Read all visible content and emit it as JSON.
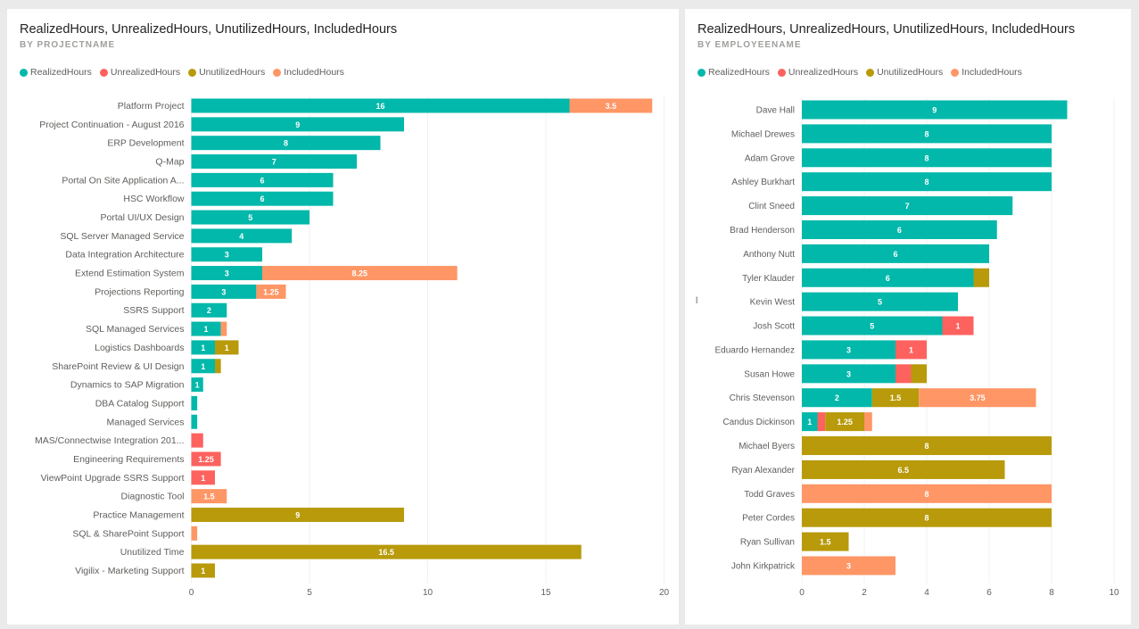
{
  "series_colors": [
    "#01b8aa",
    "#fd625e",
    "#b89a0a",
    "#fe9666"
  ],
  "chart_data": [
    {
      "type": "bar",
      "orientation": "horizontal",
      "stacked": true,
      "title": "RealizedHours, UnrealizedHours, UnutilizedHours, IncludedHours",
      "subtitle": "BY PROJECTNAME",
      "categories": [
        "Platform Project",
        "Project Continuation - August 2016",
        "ERP Development",
        "Q-Map",
        "Portal On Site Application A...",
        "HSC Workflow",
        "Portal UI/UX Design",
        "SQL Server Managed Service",
        "Data Integration Architecture",
        "Extend Estimation System",
        "Projections Reporting",
        "SSRS Support",
        "SQL Managed Services",
        "Logistics Dashboards",
        "SharePoint Review & UI Design",
        "Dynamics to SAP Migration",
        "DBA Catalog Support",
        "Managed Services",
        "MAS/Connectwise Integration 201...",
        "Engineering Requirements",
        "ViewPoint Upgrade SSRS Support",
        "Diagnostic Tool",
        "Practice Management",
        "SQL & SharePoint Support",
        "Unutilized Time",
        "Vigilix - Marketing Support"
      ],
      "series": [
        {
          "name": "RealizedHours",
          "values": [
            16,
            9,
            8,
            7,
            6,
            6,
            5,
            4.25,
            3,
            3,
            2.75,
            1.5,
            1.25,
            1,
            1,
            0.5,
            0.25,
            0.25,
            0,
            0,
            0,
            0,
            0,
            0,
            0,
            0
          ]
        },
        {
          "name": "UnrealizedHours",
          "values": [
            0,
            0,
            0,
            0,
            0,
            0,
            0,
            0,
            0,
            0,
            0,
            0,
            0,
            0,
            0,
            0,
            0,
            0,
            0.5,
            1.25,
            1,
            0,
            0,
            0,
            0,
            0
          ]
        },
        {
          "name": "UnutilizedHours",
          "values": [
            0,
            0,
            0,
            0,
            0,
            0,
            0,
            0,
            0,
            0,
            0,
            0,
            0,
            1,
            0.25,
            0,
            0,
            0,
            0,
            0,
            0,
            0,
            9,
            0,
            16.5,
            1
          ]
        },
        {
          "name": "IncludedHours",
          "values": [
            3.5,
            0,
            0,
            0,
            0,
            0,
            0,
            0,
            0,
            8.25,
            1.25,
            0,
            0.25,
            0,
            0,
            0,
            0,
            0,
            0,
            0,
            0,
            1.5,
            0,
            0.25,
            0,
            0
          ]
        }
      ],
      "value_labels": [
        [
          "16",
          "9",
          "8",
          "7",
          "6",
          "6",
          "5",
          "4",
          "3",
          "3",
          "3",
          "2",
          "1",
          "1",
          "1",
          "1",
          "",
          "",
          "",
          "",
          "",
          "",
          "",
          "",
          "",
          ""
        ],
        [
          "",
          "",
          "",
          "",
          "",
          "",
          "",
          "",
          "",
          "",
          "",
          "",
          "",
          "",
          "",
          "",
          "",
          "",
          "",
          "1.25",
          "1",
          "",
          "",
          "",
          "",
          ""
        ],
        [
          "",
          "",
          "",
          "",
          "",
          "",
          "",
          "",
          "",
          "",
          "",
          "",
          "",
          "1",
          "",
          "",
          "",
          "",
          "",
          "",
          "",
          "",
          "9",
          "",
          "16.5",
          "1"
        ],
        [
          "3.5",
          "",
          "",
          "",
          "",
          "",
          "",
          "",
          "",
          "8.25",
          "1.25",
          "",
          "",
          "",
          "",
          "",
          "",
          "",
          "",
          "",
          "",
          "1.5",
          "",
          "",
          "",
          ""
        ]
      ],
      "xlim": [
        0,
        20
      ],
      "xticks": [
        "0",
        "5",
        "10",
        "15",
        "20"
      ],
      "legend_position": "top-left"
    },
    {
      "type": "bar",
      "orientation": "horizontal",
      "stacked": true,
      "title": "RealizedHours, UnrealizedHours, UnutilizedHours, IncludedHours",
      "subtitle": "BY EMPLOYEENAME",
      "categories": [
        "Dave Hall",
        "Michael Drewes",
        "Adam Grove",
        "Ashley Burkhart",
        "Clint Sneed",
        "Brad Henderson",
        "Anthony Nutt",
        "Tyler Klauder",
        "Kevin West",
        "Josh Scott",
        "Eduardo Hernandez",
        "Susan Howe",
        "Chris Stevenson",
        "Candus Dickinson",
        "Michael Byers",
        "Ryan Alexander",
        "Todd Graves",
        "Peter Cordes",
        "Ryan Sullivan",
        "John Kirkpatrick"
      ],
      "series": [
        {
          "name": "RealizedHours",
          "values": [
            8.5,
            8,
            8,
            8,
            6.75,
            6.25,
            6,
            5.5,
            5,
            4.5,
            3,
            3,
            2.25,
            0.5,
            0,
            0,
            0,
            0,
            0,
            0
          ]
        },
        {
          "name": "UnrealizedHours",
          "values": [
            0,
            0,
            0,
            0,
            0,
            0,
            0,
            0,
            0,
            1,
            1,
            0.5,
            0,
            0.25,
            0,
            0,
            0,
            0,
            0,
            0
          ]
        },
        {
          "name": "UnutilizedHours",
          "values": [
            0,
            0,
            0,
            0,
            0,
            0,
            0,
            0.5,
            0,
            0,
            0,
            0.5,
            1.5,
            1.25,
            8,
            6.5,
            0,
            8,
            1.5,
            0
          ]
        },
        {
          "name": "IncludedHours",
          "values": [
            0,
            0,
            0,
            0,
            0,
            0,
            0,
            0,
            0,
            0,
            0,
            0,
            3.75,
            0.25,
            0,
            0,
            8,
            0,
            0,
            3
          ]
        }
      ],
      "value_labels": [
        [
          "9",
          "8",
          "8",
          "8",
          "7",
          "6",
          "6",
          "6",
          "5",
          "5",
          "3",
          "3",
          "2",
          "1",
          "",
          "",
          "",
          "",
          "",
          ""
        ],
        [
          "",
          "",
          "",
          "",
          "",
          "",
          "",
          "",
          "",
          "1",
          "1",
          "",
          "",
          "",
          "",
          "",
          "",
          "",
          "",
          ""
        ],
        [
          "",
          "",
          "",
          "",
          "",
          "",
          "",
          "",
          "",
          "",
          "",
          "",
          "1.5",
          "1.25",
          "8",
          "6.5",
          "",
          "8",
          "1.5",
          ""
        ],
        [
          "",
          "",
          "",
          "",
          "",
          "",
          "",
          "",
          "",
          "",
          "",
          "",
          "3.75",
          "",
          "",
          "",
          "8",
          "",
          "",
          "3"
        ]
      ],
      "xlim": [
        0,
        10
      ],
      "xticks": [
        "0",
        "2",
        "4",
        "6",
        "8",
        "10"
      ],
      "legend_position": "top-left",
      "stray_label": "l"
    }
  ]
}
